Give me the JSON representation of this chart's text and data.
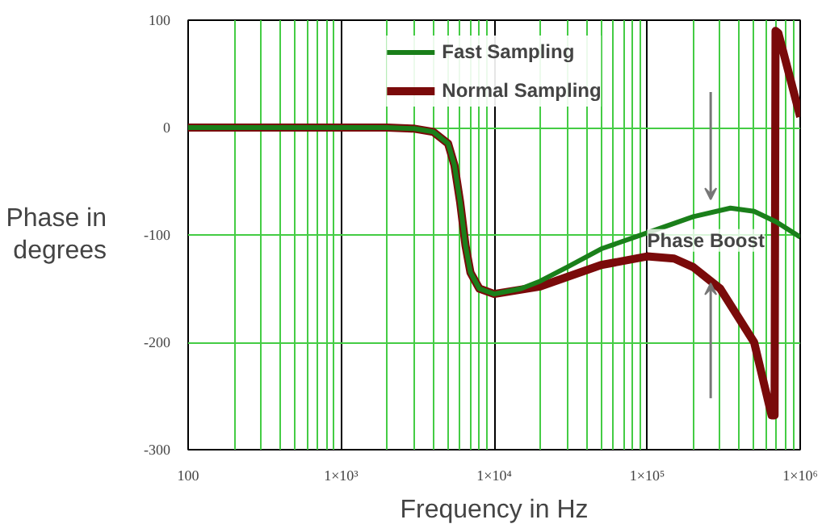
{
  "chart_data": {
    "type": "line",
    "xlabel": "Frequency in Hz",
    "ylabel": "Phase in degrees",
    "log": "x",
    "xlim": [
      100,
      1000000
    ],
    "ylim": [
      -300,
      100
    ],
    "xticks": [
      100,
      {
        "value": 1000,
        "label": "1×10³"
      },
      {
        "value": 10000,
        "label": "1×10⁴"
      },
      {
        "value": 100000,
        "label": "1×10⁵"
      },
      {
        "value": 1000000,
        "label": "1×10⁶"
      }
    ],
    "yticks": [
      100,
      0,
      -100,
      -200,
      -300
    ],
    "grid": true,
    "legend": "top",
    "line_style": "solid",
    "marker": "none",
    "annotations": [
      {
        "text": "Phase Boost",
        "x": 100000,
        "y": -105
      }
    ],
    "series": [
      {
        "name": "Fast Sampling",
        "color": "#1a7f1a",
        "x": [
          100,
          1000,
          2000,
          3000,
          4000,
          5000,
          5500,
          6000,
          6500,
          7000,
          8000,
          10000,
          15000,
          20000,
          30000,
          50000,
          100000,
          200000,
          350000,
          500000,
          700000,
          1000000
        ],
        "values": [
          0,
          0,
          0,
          -1,
          -4,
          -15,
          -35,
          -70,
          -110,
          -135,
          -150,
          -155,
          -150,
          -143,
          -130,
          -113,
          -98,
          -83,
          -75,
          -78,
          -88,
          -102
        ]
      },
      {
        "name": "Normal Sampling",
        "color": "#7a0a0a",
        "x": [
          100,
          1000,
          2000,
          3000,
          4000,
          5000,
          5500,
          6000,
          6500,
          7000,
          8000,
          10000,
          20000,
          50000,
          100000,
          150000,
          200000,
          300000,
          500000,
          650000,
          680000,
          690000,
          720000,
          1000000
        ],
        "values": [
          0,
          0,
          0,
          -1,
          -4,
          -15,
          -35,
          -70,
          -110,
          -135,
          -150,
          -155,
          -148,
          -128,
          -120,
          -122,
          -130,
          -150,
          -200,
          -268,
          -268,
          90,
          88,
          10
        ]
      }
    ]
  }
}
